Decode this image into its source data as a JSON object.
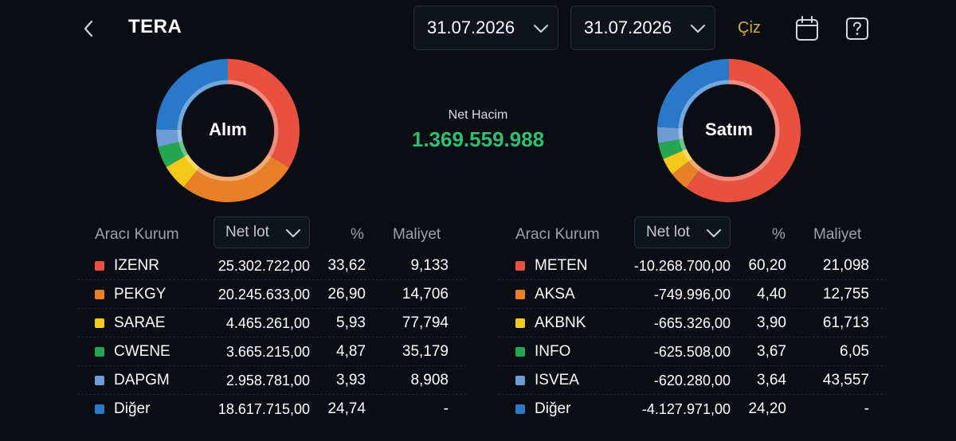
{
  "header": {
    "title": "TERA",
    "date_start": "31.07.2026",
    "date_end": "31.07.2026",
    "draw_label": "Çiz"
  },
  "center": {
    "net_label": "Net Hacim",
    "net_value": "1.369.559.988"
  },
  "buy": {
    "label": "Alım",
    "columns": {
      "broker": "Aracı Kurum",
      "sort": "Net lot",
      "pct": "%",
      "cost": "Maliyet"
    },
    "rows": [
      {
        "name": "IZENR",
        "lot": "25.302.722,00",
        "pct": "33,62",
        "cost": "9,133",
        "color": "#e8503f"
      },
      {
        "name": "PEKGY",
        "lot": "20.245.633,00",
        "pct": "26,90",
        "cost": "14,706",
        "color": "#e8802a"
      },
      {
        "name": "SARAE",
        "lot": "4.465.261,00",
        "pct": "5,93",
        "cost": "77,794",
        "color": "#f2c81a"
      },
      {
        "name": "CWENE",
        "lot": "3.665.215,00",
        "pct": "4,87",
        "cost": "35,179",
        "color": "#23a552"
      },
      {
        "name": "DAPGM",
        "lot": "2.958.781,00",
        "pct": "3,93",
        "cost": "8,908",
        "color": "#6d9bd3"
      },
      {
        "name": "Diğer",
        "lot": "18.617.715,00",
        "pct": "24,74",
        "cost": "-",
        "color": "#2a78c8"
      }
    ]
  },
  "sell": {
    "label": "Satım",
    "columns": {
      "broker": "Aracı Kurum",
      "sort": "Net lot",
      "pct": "%",
      "cost": "Maliyet"
    },
    "rows": [
      {
        "name": "METEN",
        "lot": "-10.268.700,00",
        "pct": "60,20",
        "cost": "21,098",
        "color": "#e8503f"
      },
      {
        "name": "AKSA",
        "lot": "-749.996,00",
        "pct": "4,40",
        "cost": "12,755",
        "color": "#e8802a"
      },
      {
        "name": "AKBNK",
        "lot": "-665.326,00",
        "pct": "3,90",
        "cost": "61,713",
        "color": "#f2c81a"
      },
      {
        "name": "INFO",
        "lot": "-625.508,00",
        "pct": "3,67",
        "cost": "6,05",
        "color": "#23a552"
      },
      {
        "name": "ISVEA",
        "lot": "-620.280,00",
        "pct": "3,64",
        "cost": "43,557",
        "color": "#6d9bd3"
      },
      {
        "name": "Diğer",
        "lot": "-4.127.971,00",
        "pct": "24,20",
        "cost": "-",
        "color": "#2a78c8"
      }
    ]
  }
}
